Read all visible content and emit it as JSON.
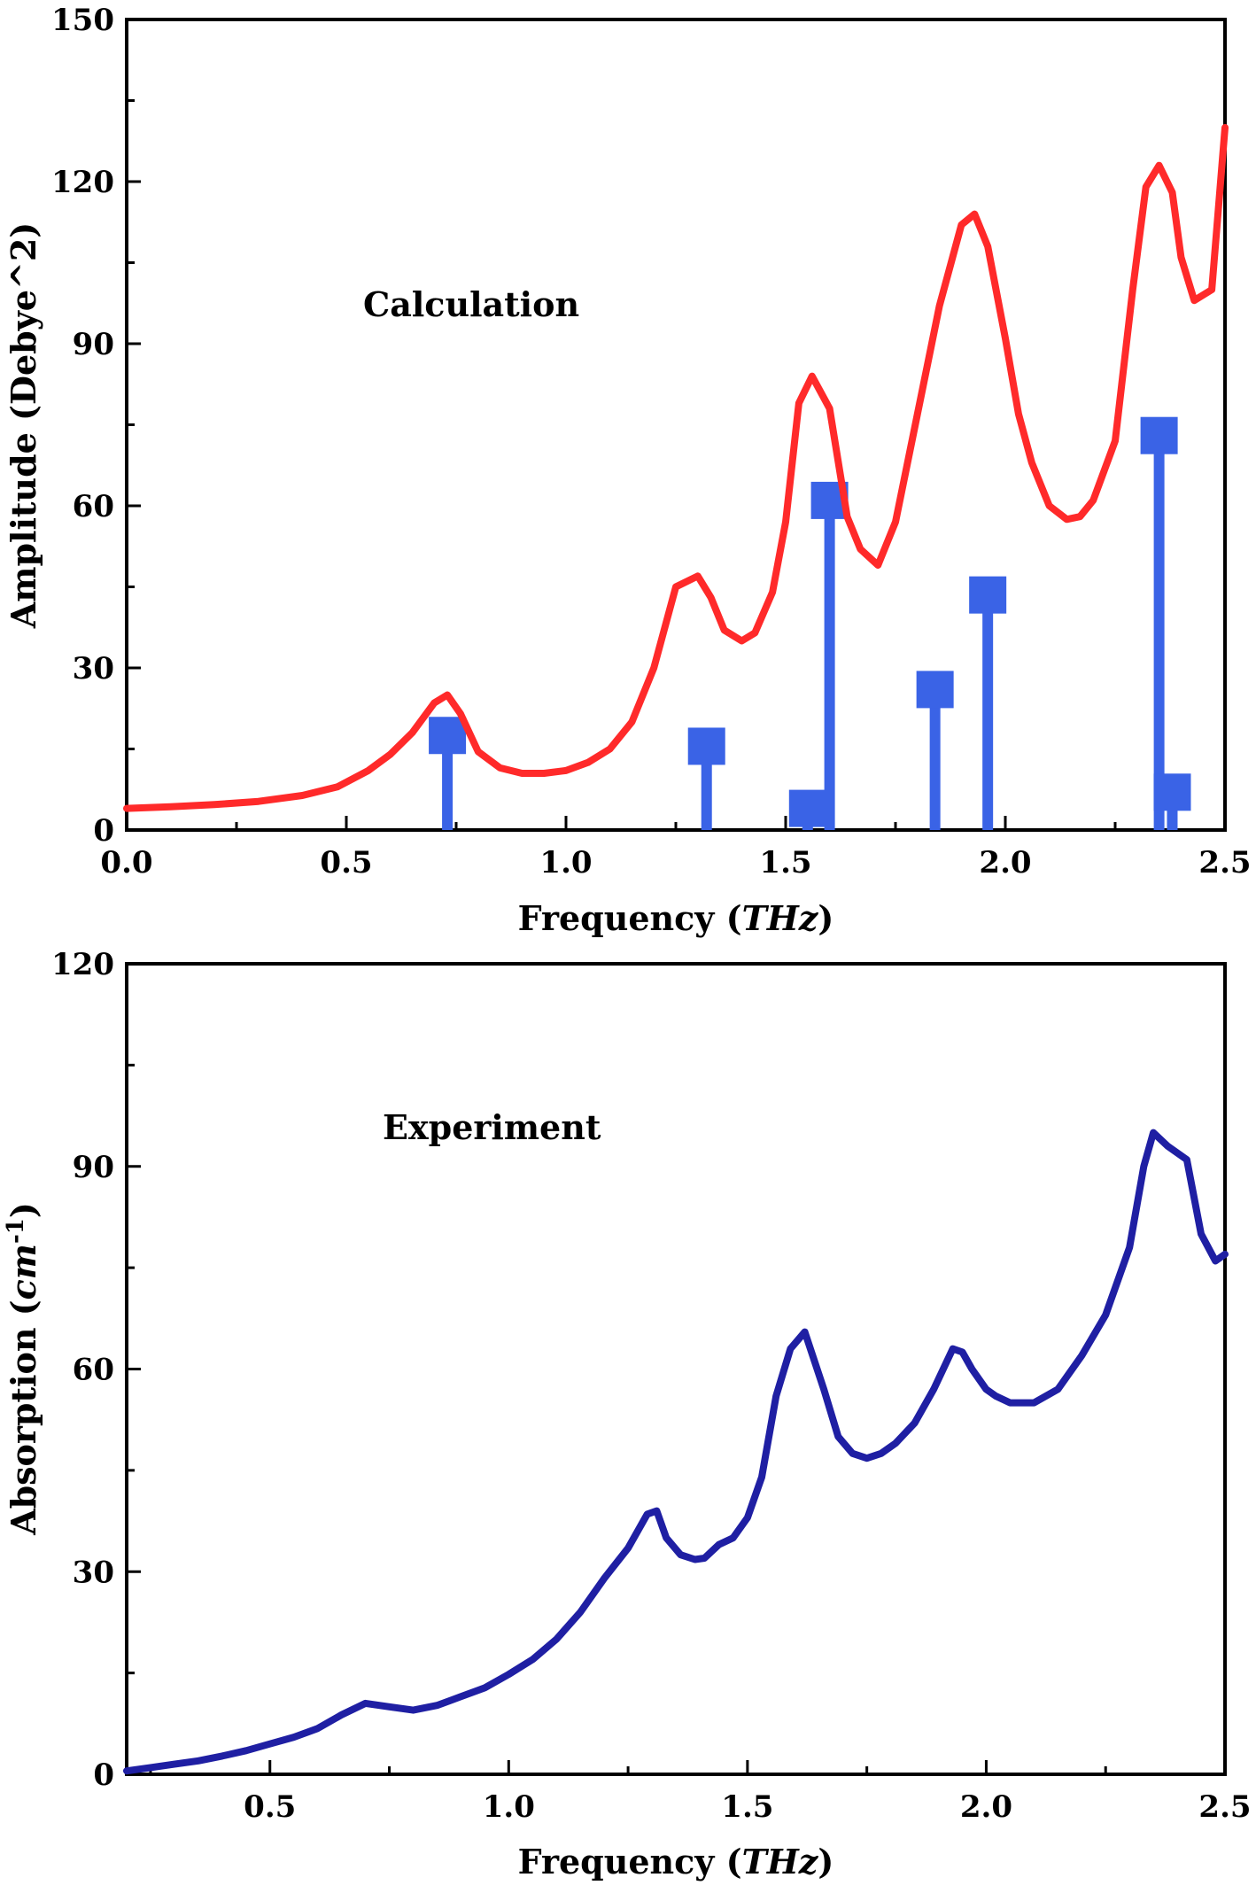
{
  "chart_data": [
    {
      "type": "line",
      "annotation": "Calculation",
      "xlabel": {
        "prefix": "Frequency (",
        "italic": "THz",
        "suffix": ")"
      },
      "ylabel": "Amplitude (Debye^2)",
      "xlim": [
        0,
        2.5
      ],
      "ylim": [
        0,
        150
      ],
      "xticks": [
        0.0,
        0.5,
        1.0,
        1.5,
        2.0,
        2.5
      ],
      "xtick_labels": [
        "0.0",
        "0.5",
        "1.0",
        "1.5",
        "2.0",
        "2.5"
      ],
      "yticks": [
        0,
        30,
        60,
        90,
        120,
        150
      ],
      "ytick_labels": [
        "0",
        "30",
        "60",
        "90",
        "120",
        "150"
      ],
      "grid": false,
      "colors": {
        "line": "#ff2a2a",
        "stems": "#3a63e6"
      },
      "series": [
        {
          "x": [
            0.0,
            0.1,
            0.2,
            0.3,
            0.4,
            0.48,
            0.55,
            0.6,
            0.65,
            0.7,
            0.73,
            0.76,
            0.8,
            0.85,
            0.9,
            0.95,
            1.0,
            1.05,
            1.1,
            1.15,
            1.2,
            1.25,
            1.3,
            1.33,
            1.36,
            1.4,
            1.43,
            1.47,
            1.5,
            1.53,
            1.56,
            1.6,
            1.64,
            1.67,
            1.71,
            1.75,
            1.8,
            1.85,
            1.9,
            1.93,
            1.96,
            2.0,
            2.03,
            2.06,
            2.1,
            2.14,
            2.17,
            2.2,
            2.25,
            2.29,
            2.32,
            2.35,
            2.38,
            2.4,
            2.43,
            2.47,
            2.5
          ],
          "y": [
            4,
            4.3,
            4.7,
            5.3,
            6.4,
            8,
            11,
            14,
            18,
            23.5,
            25,
            21.5,
            14.5,
            11.5,
            10.5,
            10.5,
            11,
            12.5,
            15,
            20,
            30,
            45,
            47,
            43,
            37,
            35,
            36.5,
            44,
            57,
            79,
            84,
            78,
            58,
            52,
            49,
            57,
            77,
            97,
            112,
            114,
            108,
            91,
            77,
            68,
            60,
            57.5,
            58,
            61,
            72,
            100,
            119,
            123,
            118,
            106,
            98,
            100,
            130
          ]
        }
      ],
      "stems": {
        "x": [
          0.73,
          1.32,
          1.55,
          1.6,
          1.84,
          1.96,
          2.35,
          2.38
        ],
        "y": [
          17.5,
          15.5,
          4,
          61,
          26,
          43.5,
          73,
          7
        ]
      }
    },
    {
      "type": "line",
      "annotation": "Experiment",
      "xlabel": {
        "prefix": "Frequency (",
        "italic": "THz",
        "suffix": ")"
      },
      "ylabel": {
        "prefix": "Absorption (",
        "italic": "cm",
        "sup": "-1",
        "suffix": ")"
      },
      "xlim": [
        0.2,
        2.5
      ],
      "ylim": [
        0,
        120
      ],
      "xticks": [
        0.5,
        1.0,
        1.5,
        2.0,
        2.5
      ],
      "xtick_labels": [
        "0.5",
        "1.0",
        "1.5",
        "2.0",
        "2.5"
      ],
      "yticks": [
        0,
        30,
        60,
        90,
        120
      ],
      "ytick_labels": [
        "0",
        "30",
        "60",
        "90",
        "120"
      ],
      "grid": false,
      "colors": {
        "line": "#1f1fa3"
      },
      "series": [
        {
          "x": [
            0.2,
            0.25,
            0.3,
            0.35,
            0.4,
            0.45,
            0.5,
            0.55,
            0.6,
            0.65,
            0.7,
            0.75,
            0.8,
            0.85,
            0.9,
            0.95,
            1.0,
            1.05,
            1.1,
            1.15,
            1.2,
            1.25,
            1.29,
            1.31,
            1.33,
            1.36,
            1.39,
            1.41,
            1.44,
            1.47,
            1.5,
            1.53,
            1.56,
            1.59,
            1.62,
            1.66,
            1.69,
            1.72,
            1.75,
            1.78,
            1.81,
            1.85,
            1.89,
            1.93,
            1.95,
            1.97,
            2.0,
            2.02,
            2.05,
            2.1,
            2.15,
            2.2,
            2.25,
            2.3,
            2.33,
            2.35,
            2.38,
            2.42,
            2.45,
            2.48,
            2.5
          ],
          "y": [
            0.5,
            1,
            1.5,
            2,
            2.7,
            3.5,
            4.5,
            5.5,
            6.8,
            8.8,
            10.5,
            10,
            9.5,
            10.2,
            11.5,
            12.8,
            14.8,
            17,
            20,
            24,
            29,
            33.5,
            38.5,
            39,
            35,
            32.5,
            31.8,
            32,
            34,
            35,
            38,
            44,
            56,
            63,
            65.5,
            57,
            50,
            47.5,
            46.8,
            47.5,
            49,
            52,
            57,
            63,
            62.5,
            60,
            57,
            56,
            55,
            55,
            57,
            62,
            68,
            78,
            90,
            95,
            93,
            91,
            80,
            76,
            77
          ]
        }
      ]
    }
  ]
}
